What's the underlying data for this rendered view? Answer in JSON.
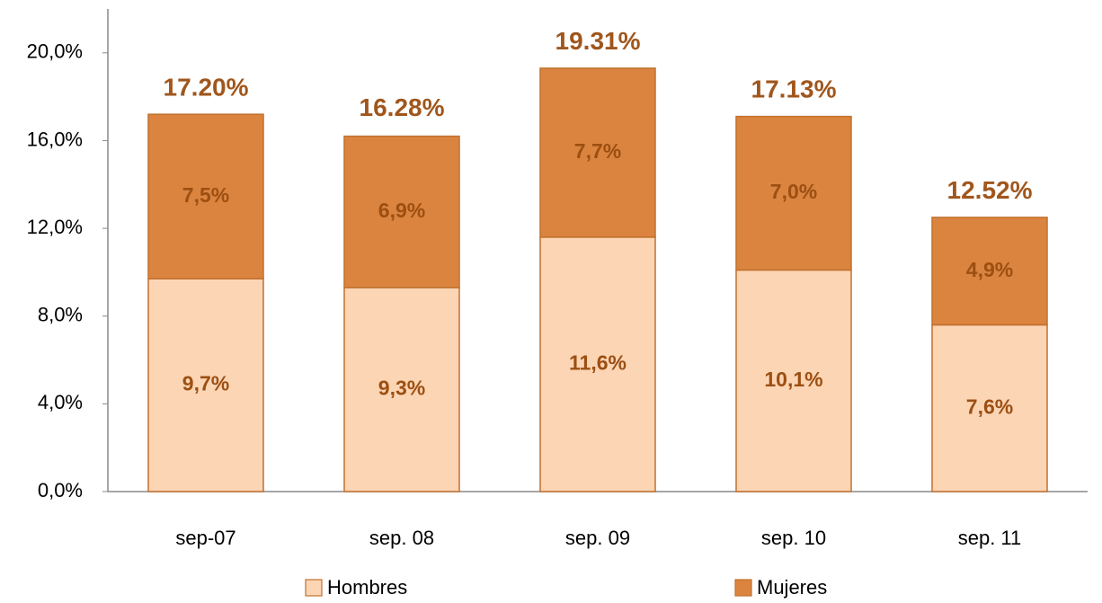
{
  "chart_data": {
    "type": "stacked_bar",
    "categories": [
      "sep-07",
      "sep. 08",
      "sep. 09",
      "sep. 10",
      "sep. 11"
    ],
    "series": [
      {
        "name": "Hombres",
        "color": "#fcd5b5",
        "values": [
          9.7,
          9.3,
          11.6,
          10.1,
          7.6
        ],
        "value_labels": [
          "9,7%",
          "9,3%",
          "11,6%",
          "10,1%",
          "7,6%"
        ]
      },
      {
        "name": "Mujeres",
        "color": "#db843f",
        "values": [
          7.5,
          6.9,
          7.7,
          7.0,
          4.9
        ],
        "value_labels": [
          "7,5%",
          "6,9%",
          "7,7%",
          "7,0%",
          "4,9%"
        ]
      }
    ],
    "totals": [
      17.2,
      16.28,
      19.31,
      17.13,
      12.52
    ],
    "total_labels": [
      "17.20%",
      "16.28%",
      "19.31%",
      "17.13%",
      "12.52%"
    ],
    "ylim": [
      0,
      22
    ],
    "yticks": [
      {
        "value": 0,
        "label": "0,0%"
      },
      {
        "value": 4,
        "label": "4,0%"
      },
      {
        "value": 8,
        "label": "8,0%"
      },
      {
        "value": 12,
        "label": "12,0%"
      },
      {
        "value": 16,
        "label": "16,0%"
      },
      {
        "value": 20,
        "label": "20,0%"
      }
    ],
    "grid": false,
    "legend": "bottom"
  }
}
